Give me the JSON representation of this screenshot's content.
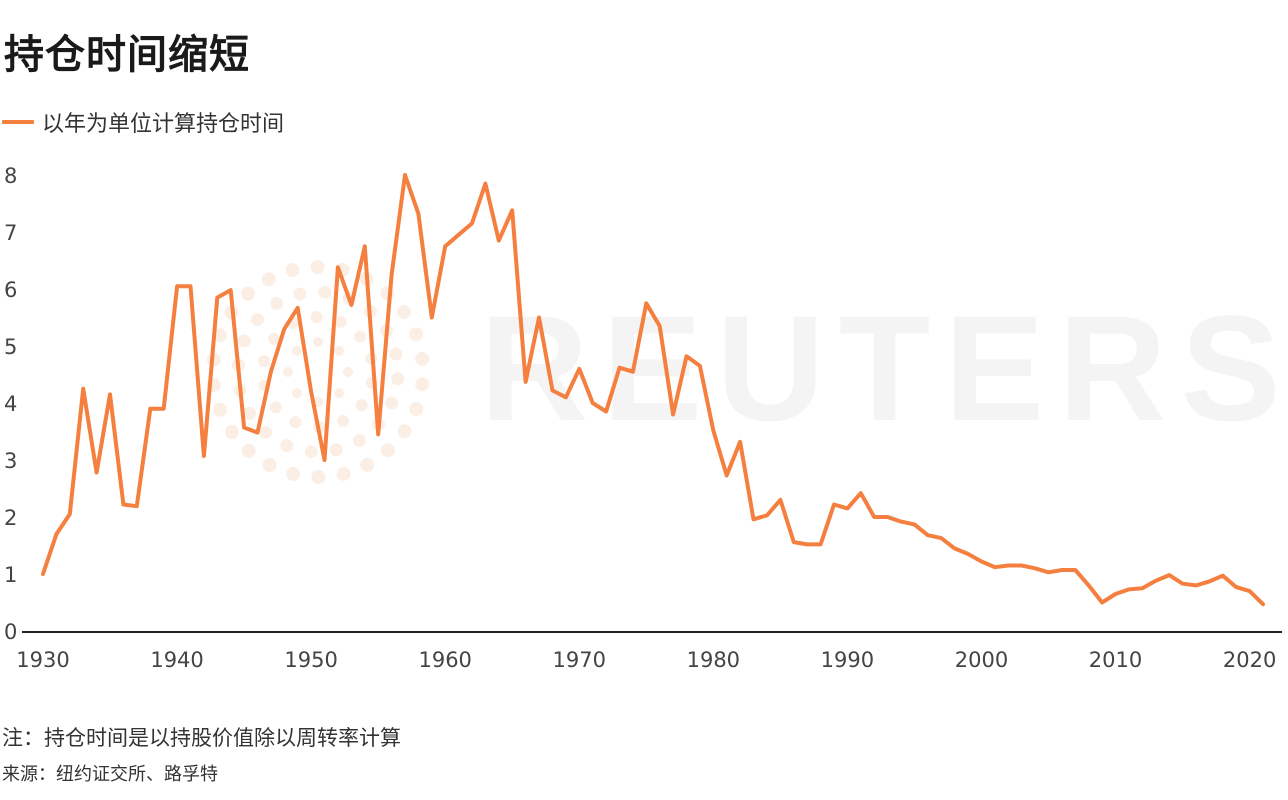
{
  "title": "持仓时间缩短",
  "footnote": "注：持仓时间是以持股价值除以周转率计算",
  "source": "来源：纽约证交所、路孚特",
  "colors": {
    "line": "#f47f3f",
    "axis": "#222222",
    "text": "#444444",
    "watermark": "#f4f4f4"
  },
  "chart_data": {
    "type": "line",
    "title": "持仓时间缩短",
    "xlabel": "",
    "ylabel": "",
    "xlim": [
      1930,
      2021
    ],
    "ylim": [
      0,
      8
    ],
    "x_ticks": [
      1930,
      1940,
      1950,
      1960,
      1970,
      1980,
      1990,
      2000,
      2010,
      2020
    ],
    "y_ticks": [
      0,
      1,
      2,
      3,
      4,
      5,
      6,
      7,
      8
    ],
    "grid": false,
    "legend_position": "top-left",
    "series": [
      {
        "name": "以年为单位计算持仓时间",
        "x": [
          1930,
          1931,
          1932,
          1933,
          1934,
          1935,
          1936,
          1937,
          1938,
          1939,
          1940,
          1941,
          1942,
          1943,
          1944,
          1945,
          1946,
          1947,
          1948,
          1949,
          1950,
          1951,
          1952,
          1953,
          1954,
          1955,
          1956,
          1957,
          1958,
          1959,
          1960,
          1961,
          1962,
          1963,
          1964,
          1965,
          1966,
          1967,
          1968,
          1969,
          1970,
          1971,
          1972,
          1973,
          1974,
          1975,
          1976,
          1977,
          1978,
          1979,
          1980,
          1981,
          1982,
          1983,
          1984,
          1985,
          1986,
          1987,
          1988,
          1989,
          1990,
          1991,
          1992,
          1993,
          1994,
          1995,
          1996,
          1997,
          1998,
          1999,
          2000,
          2001,
          2002,
          2003,
          2004,
          2005,
          2006,
          2007,
          2008,
          2009,
          2010,
          2011,
          2012,
          2013,
          2014,
          2015,
          2016,
          2017,
          2018,
          2019,
          2020,
          2021
        ],
        "values": [
          1.0,
          1.7,
          2.05,
          4.25,
          2.78,
          4.15,
          2.22,
          2.19,
          3.9,
          3.9,
          6.05,
          6.05,
          3.07,
          5.85,
          5.98,
          3.57,
          3.48,
          4.55,
          5.3,
          5.67,
          4.2,
          3.0,
          6.38,
          5.72,
          6.75,
          3.45,
          6.25,
          8.0,
          7.32,
          5.5,
          6.75,
          6.95,
          7.15,
          7.85,
          6.85,
          7.38,
          4.37,
          5.5,
          4.22,
          4.1,
          4.6,
          4.0,
          3.85,
          4.62,
          4.55,
          5.75,
          5.35,
          3.8,
          4.82,
          4.65,
          3.52,
          2.73,
          3.32,
          1.96,
          2.03,
          2.3,
          1.56,
          1.52,
          1.52,
          2.22,
          2.15,
          2.42,
          2.0,
          2.0,
          1.92,
          1.87,
          1.68,
          1.63,
          1.45,
          1.35,
          1.22,
          1.12,
          1.15,
          1.15,
          1.1,
          1.03,
          1.07,
          1.07,
          0.8,
          0.5,
          0.65,
          0.73,
          0.75,
          0.88,
          0.98,
          0.83,
          0.8,
          0.87,
          0.97,
          0.77,
          0.7,
          0.47
        ]
      }
    ]
  }
}
